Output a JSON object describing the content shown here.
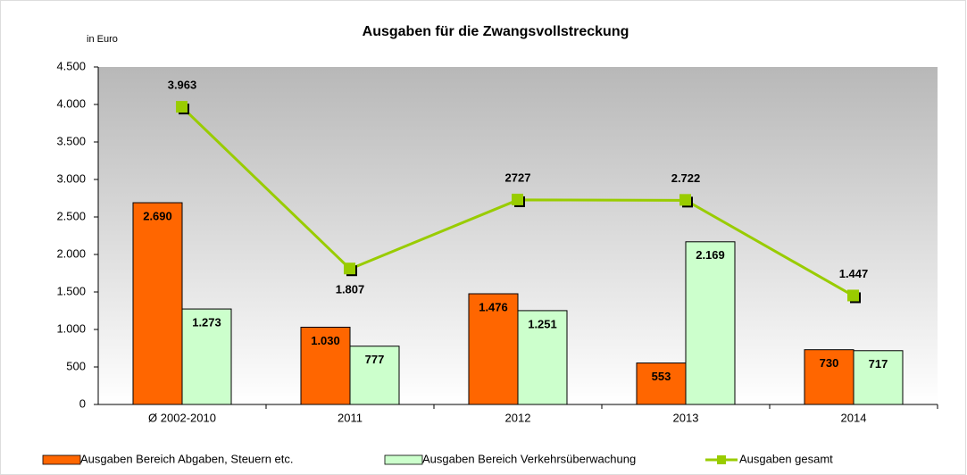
{
  "chart_data": {
    "type": "bar",
    "title": "Ausgaben für die Zwangsvollstreckung",
    "ylabel": "in Euro",
    "categories": [
      "Ø 2002-2010",
      "2011",
      "2012",
      "2013",
      "2014"
    ],
    "series": [
      {
        "name": "Ausgaben Bereich Abgaben, Steuern etc.",
        "color": "#ff6600",
        "type": "bar",
        "values": [
          2690,
          1030,
          1476,
          553,
          730
        ],
        "value_labels": [
          "2.690",
          "1.030",
          "1.476",
          "553",
          "730"
        ]
      },
      {
        "name": "Ausgaben Bereich Verkehrsüberwachung",
        "color": "#ccffcc",
        "type": "bar",
        "values": [
          1273,
          777,
          1251,
          2169,
          717
        ],
        "value_labels": [
          "1.273",
          "777",
          "1.251",
          "2.169",
          "717"
        ]
      },
      {
        "name": "Ausgaben gesamt",
        "color": "#99cc00",
        "type": "line",
        "values": [
          3963,
          1807,
          2727,
          2722,
          1447
        ],
        "value_labels": [
          "3.963",
          "1.807",
          "2727",
          "2.722",
          "1.447"
        ]
      }
    ],
    "ylim": [
      0,
      4500
    ],
    "yticks": [
      0,
      500,
      {
        "value": 1000,
        "label": "1.000"
      },
      {
        "value": 1500,
        "label": "1.500"
      },
      {
        "value": 2000,
        "label": "2.000"
      },
      {
        "value": 2500,
        "label": "2.500"
      },
      {
        "value": 3000,
        "label": "3.000"
      },
      {
        "value": 3500,
        "label": "3.500"
      },
      {
        "value": 4000,
        "label": "4.000"
      },
      {
        "value": 4500,
        "label": "4.500"
      }
    ]
  }
}
